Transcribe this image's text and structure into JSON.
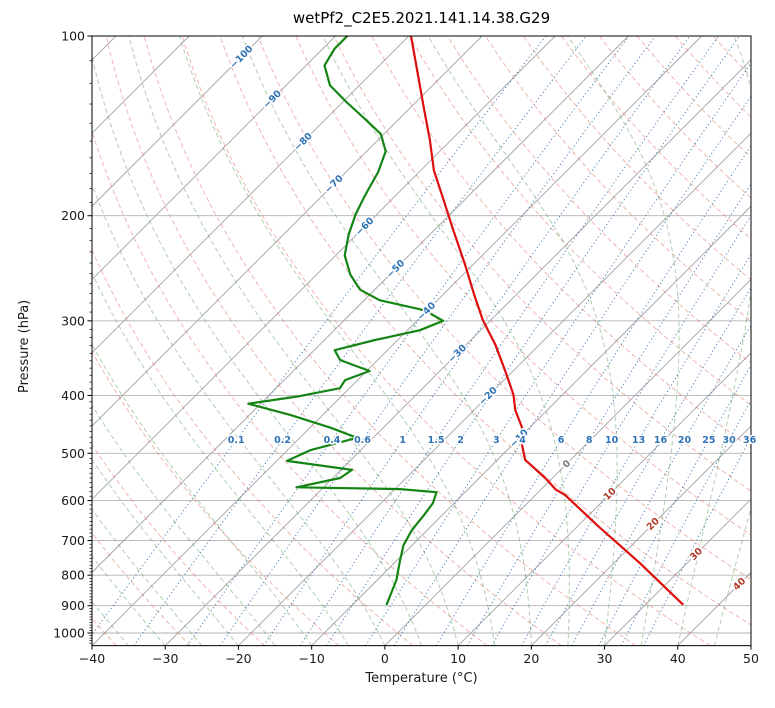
{
  "chart_data": {
    "type": "skewt_log_p",
    "title": "wetPf2_C2E5.2021.141.14.38.G29",
    "xlabel": "Temperature (°C)",
    "ylabel": "Pressure (hPa)",
    "x_ticks_c": [
      -40,
      -30,
      -20,
      -10,
      0,
      10,
      20,
      30,
      40,
      50
    ],
    "p_ticks_hpa": [
      100,
      200,
      300,
      400,
      500,
      600,
      700,
      800,
      900,
      1000
    ],
    "xlim_c": [
      -40,
      50
    ],
    "plim_hpa": [
      1050,
      100
    ],
    "skew_c_per_decade": 81.5,
    "grid": true,
    "isotherm_step_c": 10,
    "isotherm_labels_c": [
      -100,
      -90,
      -80,
      -70,
      -60,
      -50,
      -40,
      -30,
      -20,
      -10,
      0,
      10,
      20,
      30,
      40
    ],
    "mixing_ratio_lines_g_kg": [
      0.1,
      0.2,
      0.4,
      0.6,
      1,
      1.5,
      2,
      3,
      4,
      6,
      8,
      10,
      13,
      16,
      20,
      25,
      30,
      36
    ],
    "mixing_label_pressure_hpa": 475,
    "dry_adiabats_c": {
      "start": -40,
      "end": 190,
      "step": 10
    },
    "moist_adiabats_c": {
      "start": -40,
      "end": 45,
      "step": 5
    },
    "colors": {
      "temperature": "#dd0e0e",
      "dewpoint": "#148514",
      "isobar": "#b3b3b3",
      "isotherm": "#a3a3a3",
      "dry_adiabat": "rgba(222,110,95,0.5)",
      "moist_adiabat": "rgba(96,160,96,0.5)",
      "mixing_ratio": "rgba(47,110,175,0.85)",
      "label_cold": "#2e74b5",
      "label_zero": "#7a7a7a",
      "label_warm": "#b03a2a",
      "axis_text": "#1a1a1a"
    },
    "series": [
      {
        "name": "temperature",
        "units": [
          "hPa",
          "°C"
        ],
        "points_p_t": [
          [
            895,
            35.0
          ],
          [
            763,
            23.5
          ],
          [
            664,
            13.0
          ],
          [
            587,
            4.0
          ],
          [
            575,
            2.0
          ],
          [
            550,
            -1.0
          ],
          [
            513,
            -6.2
          ],
          [
            484,
            -8.7
          ],
          [
            457,
            -10.6
          ],
          [
            423,
            -14.4
          ],
          [
            399,
            -16.7
          ],
          [
            363,
            -21.2
          ],
          [
            329,
            -26.0
          ],
          [
            299,
            -31.1
          ],
          [
            272,
            -35.6
          ],
          [
            242,
            -41.0
          ],
          [
            211,
            -47.5
          ],
          [
            188,
            -52.9
          ],
          [
            168,
            -58.2
          ],
          [
            149,
            -63.0
          ],
          [
            133,
            -67.8
          ],
          [
            116,
            -73.5
          ],
          [
            100,
            -79.7
          ]
        ]
      },
      {
        "name": "dewpoint",
        "units": [
          "hPa",
          "°C"
        ],
        "points_p_t": [
          [
            895,
            -5.4
          ],
          [
            815,
            -7.4
          ],
          [
            755,
            -9.6
          ],
          [
            712,
            -11.2
          ],
          [
            672,
            -12.1
          ],
          [
            634,
            -12.5
          ],
          [
            606,
            -12.9
          ],
          [
            581,
            -13.9
          ],
          [
            574,
            -19.3
          ],
          [
            570,
            -33.7
          ],
          [
            550,
            -29.0
          ],
          [
            533,
            -28.5
          ],
          [
            515,
            -38.6
          ],
          [
            494,
            -36.9
          ],
          [
            471,
            -32.2
          ],
          [
            453,
            -37.2
          ],
          [
            431,
            -44.5
          ],
          [
            413,
            -51.7
          ],
          [
            401,
            -45.7
          ],
          [
            389,
            -41.3
          ],
          [
            377,
            -41.7
          ],
          [
            364,
            -39.6
          ],
          [
            349,
            -45.1
          ],
          [
            336,
            -47.2
          ],
          [
            323,
            -43.1
          ],
          [
            311,
            -38.3
          ],
          [
            300,
            -36.4
          ],
          [
            288,
            -40.4
          ],
          [
            277,
            -47.9
          ],
          [
            266,
            -52.0
          ],
          [
            251,
            -55.4
          ],
          [
            233,
            -58.8
          ],
          [
            215,
            -61.1
          ],
          [
            199,
            -62.9
          ],
          [
            185,
            -64.2
          ],
          [
            169,
            -65.6
          ],
          [
            156,
            -67.4
          ],
          [
            146,
            -70.4
          ],
          [
            138,
            -74.5
          ],
          [
            129,
            -79.5
          ],
          [
            121,
            -84.0
          ],
          [
            112,
            -87.5
          ],
          [
            105,
            -88.4
          ],
          [
            100,
            -88.4
          ]
        ]
      }
    ]
  }
}
